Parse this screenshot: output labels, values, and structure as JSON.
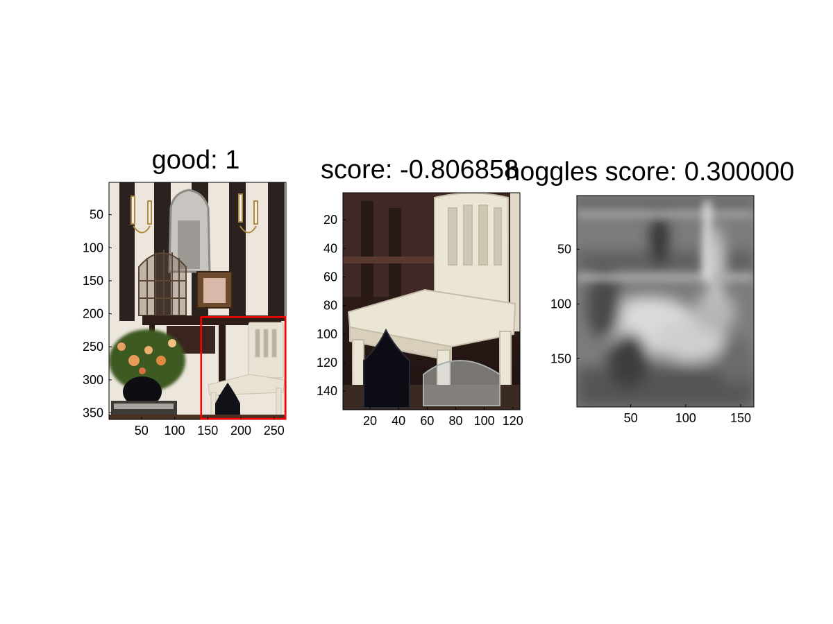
{
  "chart_data": [
    {
      "type": "image",
      "title": "good: 1",
      "xticks": [
        50,
        100,
        150,
        200,
        250
      ],
      "yticks": [
        50,
        100,
        150,
        200,
        250,
        300,
        350
      ],
      "xlim": [
        1,
        268
      ],
      "ylim": [
        1,
        360
      ],
      "annotation": {
        "shape": "rectangle",
        "color": "#ff0000",
        "x_range": [
          140,
          267
        ],
        "y_range": [
          205,
          359
        ]
      },
      "content": "photo"
    },
    {
      "type": "image",
      "title": "score: -0.806858",
      "xticks": [
        20,
        40,
        60,
        80,
        100,
        120
      ],
      "yticks": [
        20,
        40,
        60,
        80,
        100,
        120,
        140
      ],
      "xlim": [
        1,
        125
      ],
      "ylim": [
        1,
        153
      ],
      "content": "crop"
    },
    {
      "type": "heatmap",
      "title": "hoggles score: 0.300000",
      "colormap": "gray",
      "xticks": [
        50,
        100,
        150
      ],
      "yticks": [
        50,
        100,
        150
      ],
      "xlim": [
        1,
        162
      ],
      "ylim": [
        1,
        194
      ],
      "content": "grayscale-inversion"
    }
  ]
}
